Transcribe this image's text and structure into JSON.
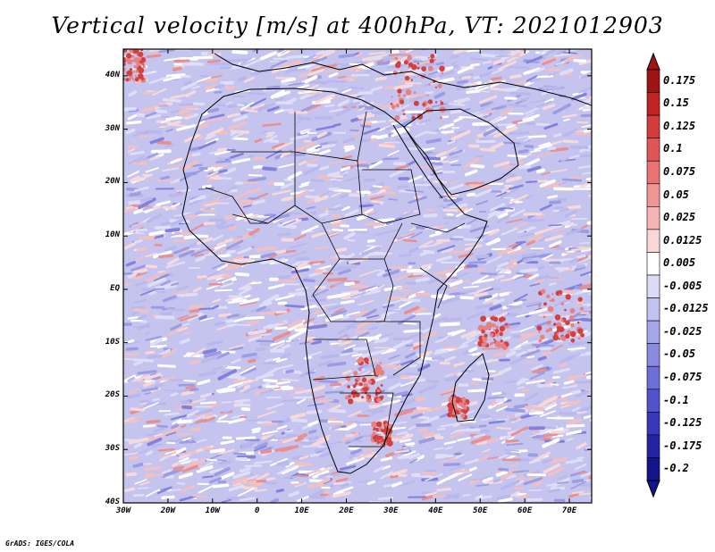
{
  "title": "Vertical velocity [m/s] at 400hPa, VT: 2021012903",
  "credit": "GrADS: IGES/COLA",
  "map": {
    "region": "Africa",
    "lon_range": [
      -30,
      75
    ],
    "lat_range": [
      -40,
      45
    ],
    "x_ticks": [
      "30W",
      "20W",
      "10W",
      "0",
      "10E",
      "20E",
      "30E",
      "40E",
      "50E",
      "60E",
      "70E"
    ],
    "y_ticks": [
      "40N",
      "30N",
      "20N",
      "10N",
      "EQ",
      "10S",
      "20S",
      "30S",
      "40S"
    ]
  },
  "colorbar": {
    "labels": [
      "0.175",
      "0.15",
      "0.125",
      "0.1",
      "0.075",
      "0.05",
      "0.025",
      "0.0125",
      "0.005",
      "-0.005",
      "-0.0125",
      "-0.025",
      "-0.05",
      "-0.075",
      "-0.1",
      "-0.125",
      "-0.175",
      "-0.2"
    ],
    "colors": [
      "#9e1414",
      "#c02424",
      "#d33c3c",
      "#e05656",
      "#ea7272",
      "#f19494",
      "#f6b4b4",
      "#fad6d6",
      "#ffffff",
      "#dcdcf6",
      "#c2c2f0",
      "#a6a6ea",
      "#8a8ae2",
      "#6e6ed8",
      "#5252cc",
      "#3838b8",
      "#2424a0",
      "#14148a"
    ]
  }
}
